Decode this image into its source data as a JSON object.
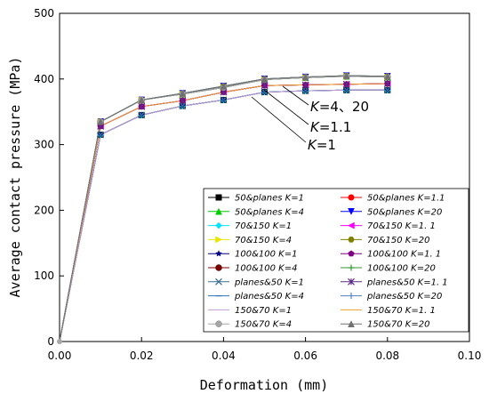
{
  "chart_data": {
    "type": "line",
    "xlabel": "Deformation (mm)",
    "ylabel": "Average contact pressure (MPa)",
    "xlim": [
      0.0,
      0.1
    ],
    "ylim": [
      0,
      500
    ],
    "xticks": [
      0.0,
      0.02,
      0.04,
      0.06,
      0.08,
      0.1
    ],
    "xtick_labels": [
      "0.00",
      "0.02",
      "0.04",
      "0.06",
      "0.08",
      "0.10"
    ],
    "yticks": [
      0,
      100,
      200,
      300,
      400,
      500
    ],
    "ytick_labels": [
      "0",
      "100",
      "200",
      "300",
      "400",
      "500"
    ],
    "grid": false,
    "legend_position": "bottom-right",
    "series": [
      {
        "name": "50&planes  K=1",
        "color": "#000000",
        "marker": "square",
        "group": "k1"
      },
      {
        "name": "50&planes  K=1.1",
        "color": "#ff0000",
        "marker": "circle",
        "group": "k11"
      },
      {
        "name": "50&planes  K=4",
        "color": "#00cc00",
        "marker": "triangle-up",
        "group": "k4"
      },
      {
        "name": "50&planes  K=20",
        "color": "#0000ff",
        "marker": "triangle-down",
        "group": "k20"
      },
      {
        "name": "70&150  K=1",
        "color": "#00e5ff",
        "marker": "diamond",
        "group": "k1"
      },
      {
        "name": "70&150  K=1. 1",
        "color": "#ff00ff",
        "marker": "triangle-left",
        "group": "k11"
      },
      {
        "name": "70&150  K=4",
        "color": "#e6e600",
        "marker": "triangle-right",
        "group": "k4"
      },
      {
        "name": "70&150  K=20",
        "color": "#808000",
        "marker": "hexagon",
        "group": "k20"
      },
      {
        "name": "100&100  K=1",
        "color": "#000080",
        "marker": "star",
        "group": "k1"
      },
      {
        "name": "100&100  K=1. 1",
        "color": "#800080",
        "marker": "pentagon",
        "group": "k11"
      },
      {
        "name": "100&100  K=4",
        "color": "#800000",
        "marker": "sphere",
        "group": "k4"
      },
      {
        "name": "100&100  K=20",
        "color": "#339933",
        "marker": "plus",
        "group": "k20"
      },
      {
        "name": "planes&50  K=1",
        "color": "#3a6e8f",
        "marker": "x",
        "group": "k1"
      },
      {
        "name": "planes&50  K=1. 1",
        "color": "#5b2a86",
        "marker": "asterisk",
        "group": "k11"
      },
      {
        "name": "planes&50  K=4",
        "color": "#2e75b6",
        "marker": "dash",
        "group": "k4"
      },
      {
        "name": "planes&50  K=20",
        "color": "#4f81bd",
        "marker": "bar",
        "group": "k20"
      },
      {
        "name": "150&70  K=1",
        "color": "#c39bd3",
        "marker": "none",
        "group": "k1"
      },
      {
        "name": "150&70  K=1. 1",
        "color": "#f0a030",
        "marker": "none",
        "group": "k11"
      },
      {
        "name": "150&70  K=4",
        "color": "#a6a6a6",
        "marker": "circle-filled",
        "group": "k4"
      },
      {
        "name": "150&70  K=20",
        "color": "#707070",
        "marker": "triangle-up",
        "group": "k20"
      }
    ],
    "curves": {
      "k1": {
        "x": [
          0.0,
          0.01,
          0.02,
          0.03,
          0.04,
          0.05,
          0.06,
          0.07,
          0.08
        ],
        "y": [
          0,
          315,
          345,
          359,
          368,
          380,
          382,
          383,
          383
        ]
      },
      "k11": {
        "x": [
          0.0,
          0.01,
          0.02,
          0.03,
          0.04,
          0.05,
          0.06,
          0.07,
          0.08
        ],
        "y": [
          0,
          328,
          358,
          367,
          380,
          390,
          391,
          392,
          393
        ]
      },
      "k4": {
        "x": [
          0.0,
          0.01,
          0.02,
          0.03,
          0.04,
          0.05,
          0.06,
          0.07,
          0.08
        ],
        "y": [
          0,
          335,
          368,
          377,
          387,
          399,
          402,
          404,
          403
        ]
      },
      "k20": {
        "x": [
          0.0,
          0.01,
          0.02,
          0.03,
          0.04,
          0.05,
          0.06,
          0.07,
          0.08
        ],
        "y": [
          0,
          335,
          368,
          378,
          389,
          400,
          403,
          405,
          404
        ]
      }
    },
    "annotations": [
      {
        "label": "K=4、20",
        "italic_prefix": "K",
        "rest": "=4、20"
      },
      {
        "label": "K=1.1",
        "italic_prefix": "K",
        "rest": "=1.1"
      },
      {
        "label": "K=1",
        "italic_prefix": "K",
        "rest": "=1"
      }
    ]
  }
}
